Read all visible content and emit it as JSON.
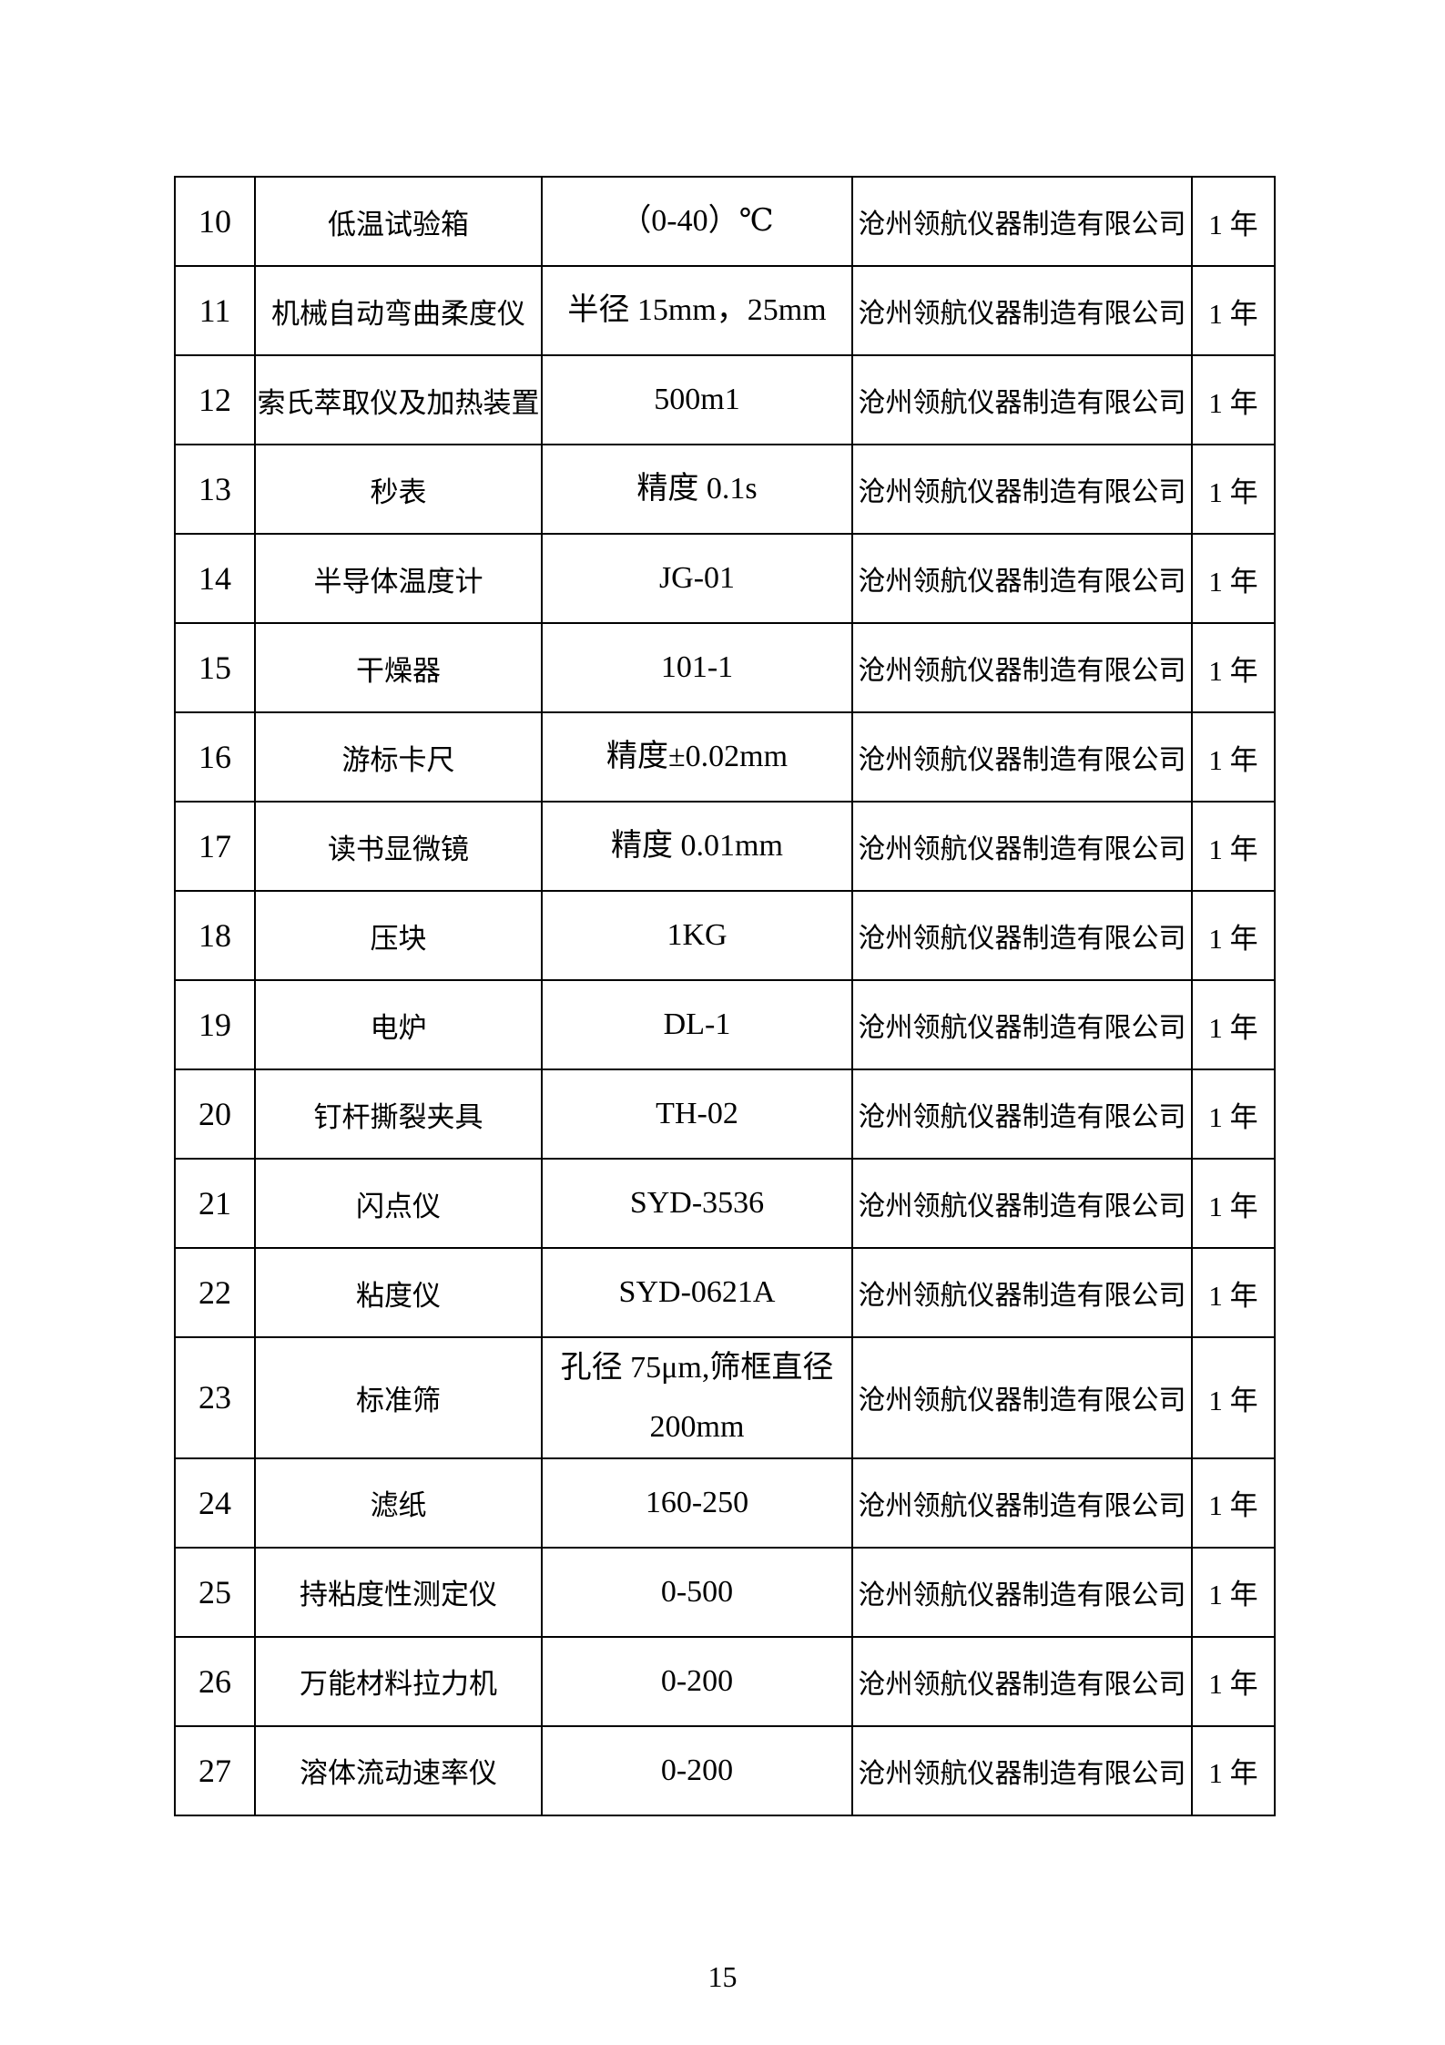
{
  "page_number": "15",
  "table": {
    "rows": [
      {
        "no": "10",
        "name": "低温试验箱",
        "spec": "（0-40）℃",
        "manufacturer": "沧州领航仪器制造有限公司",
        "duration": "1 年"
      },
      {
        "no": "11",
        "name": "机械自动弯曲柔度仪",
        "spec": "半径 15mm，25mm",
        "manufacturer": "沧州领航仪器制造有限公司",
        "duration": "1 年"
      },
      {
        "no": "12",
        "name": "索氏萃取仪及加热装置",
        "spec": "500m1",
        "manufacturer": "沧州领航仪器制造有限公司",
        "duration": "1 年"
      },
      {
        "no": "13",
        "name": "秒表",
        "spec": "精度 0.1s",
        "manufacturer": "沧州领航仪器制造有限公司",
        "duration": "1 年"
      },
      {
        "no": "14",
        "name": "半导体温度计",
        "spec": "JG-01",
        "manufacturer": "沧州领航仪器制造有限公司",
        "duration": "1 年"
      },
      {
        "no": "15",
        "name": "干燥器",
        "spec": "101-1",
        "manufacturer": "沧州领航仪器制造有限公司",
        "duration": "1 年"
      },
      {
        "no": "16",
        "name": "游标卡尺",
        "spec": "精度±0.02mm",
        "manufacturer": "沧州领航仪器制造有限公司",
        "duration": "1 年"
      },
      {
        "no": "17",
        "name": "读书显微镜",
        "spec": "精度 0.01mm",
        "manufacturer": "沧州领航仪器制造有限公司",
        "duration": "1 年"
      },
      {
        "no": "18",
        "name": "压块",
        "spec": "1KG",
        "manufacturer": "沧州领航仪器制造有限公司",
        "duration": "1 年"
      },
      {
        "no": "19",
        "name": "电炉",
        "spec": "DL-1",
        "manufacturer": "沧州领航仪器制造有限公司",
        "duration": "1 年"
      },
      {
        "no": "20",
        "name": "钉杆撕裂夹具",
        "spec": "TH-02",
        "manufacturer": "沧州领航仪器制造有限公司",
        "duration": "1 年"
      },
      {
        "no": "21",
        "name": "闪点仪",
        "spec": "SYD-3536",
        "manufacturer": "沧州领航仪器制造有限公司",
        "duration": "1 年"
      },
      {
        "no": "22",
        "name": "粘度仪",
        "spec": "SYD-0621A",
        "manufacturer": "沧州领航仪器制造有限公司",
        "duration": "1 年"
      },
      {
        "no": "23",
        "name": "标准筛",
        "spec": "孔径 75μm,筛框直径\n200mm",
        "manufacturer": "沧州领航仪器制造有限公司",
        "duration": "1 年"
      },
      {
        "no": "24",
        "name": "滤纸",
        "spec": "160-250",
        "manufacturer": "沧州领航仪器制造有限公司",
        "duration": "1 年"
      },
      {
        "no": "25",
        "name": "持粘度性测定仪",
        "spec": "0-500",
        "manufacturer": "沧州领航仪器制造有限公司",
        "duration": "1 年"
      },
      {
        "no": "26",
        "name": "万能材料拉力机",
        "spec": "0-200",
        "manufacturer": "沧州领航仪器制造有限公司",
        "duration": "1 年"
      },
      {
        "no": "27",
        "name": "溶体流动速率仪",
        "spec": "0-200",
        "manufacturer": "沧州领航仪器制造有限公司",
        "duration": "1 年"
      }
    ]
  }
}
